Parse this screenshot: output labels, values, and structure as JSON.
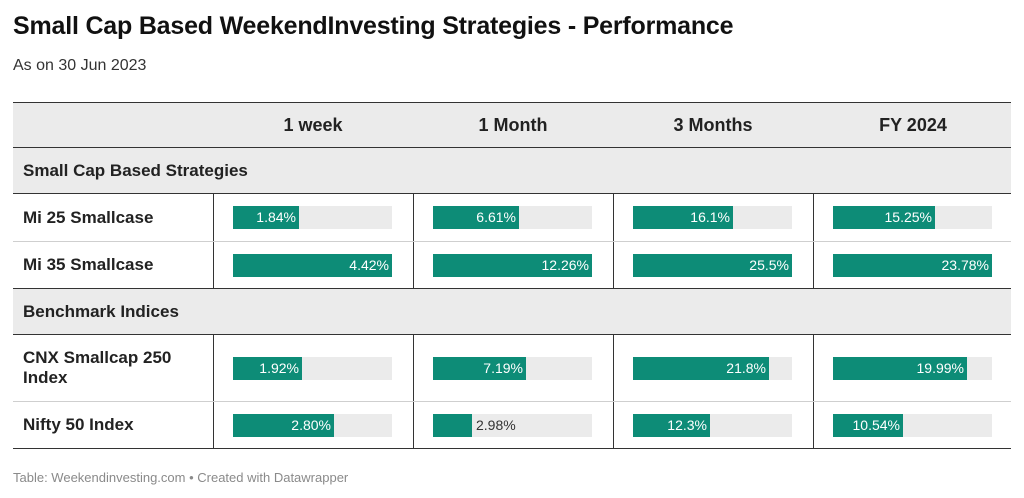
{
  "header": {
    "title": "Small Cap Based WeekendInvesting Strategies - Performance",
    "subtitle": "As on 30 Jun 2023"
  },
  "chart_data": {
    "type": "table",
    "columns": [
      "1 week",
      "1 Month",
      "3 Months",
      "FY 2024"
    ],
    "groups": [
      {
        "name": "Small Cap Based Strategies",
        "rows": [
          {
            "label": "Mi 25 Smallcase",
            "values": [
              1.84,
              6.61,
              16.1,
              15.25
            ],
            "display": [
              "1.84%",
              "6.61%",
              "16.1%",
              "15.25%"
            ]
          },
          {
            "label": "Mi 35 Smallcase",
            "values": [
              4.42,
              12.26,
              25.5,
              23.78
            ],
            "display": [
              "4.42%",
              "12.26%",
              "25.5%",
              "23.78%"
            ]
          }
        ]
      },
      {
        "name": "Benchmark Indices",
        "rows": [
          {
            "label": "CNX Smallcap 250 Index",
            "values": [
              1.92,
              7.19,
              21.8,
              19.99
            ],
            "display": [
              "1.92%",
              "7.19%",
              "21.8%",
              "19.99%"
            ]
          },
          {
            "label": "Nifty 50 Index",
            "values": [
              2.8,
              2.98,
              12.3,
              10.54
            ],
            "display": [
              "2.80%",
              "2.98%",
              "12.3%",
              "10.54%"
            ]
          }
        ]
      }
    ],
    "bar_color": "#0d8c77",
    "track_color": "#ebebeb"
  },
  "footer": {
    "source": "Table: Weekendinvesting.com • Created with Datawrapper"
  }
}
